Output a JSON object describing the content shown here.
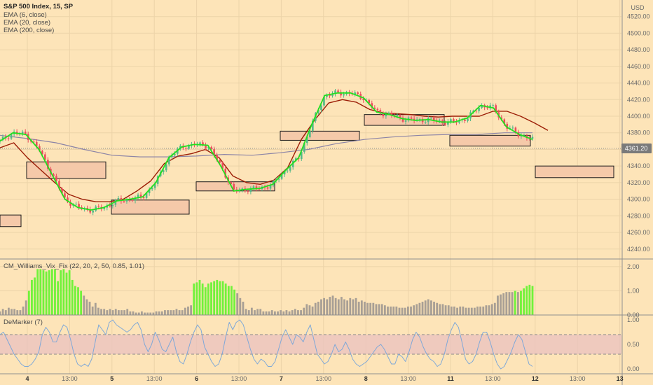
{
  "header": {
    "title": "S&P 500 Index, 15, SP",
    "indicators": [
      "EMA (6, close)",
      "EMA (20, close)",
      "EMA (200, close)"
    ],
    "currency": "USD"
  },
  "colors": {
    "background": "#fde4b8",
    "grid": "#ecd3a8",
    "candle_up": "#53b987",
    "candle_down": "#eb4d5c",
    "ema6": "#22e01e",
    "ema20": "#9c1d06",
    "ema200": "#8c84a6",
    "box_fill": "#f5c9a9",
    "box_stroke": "#1a1a1a",
    "last_price_bg": "#7a7a7a",
    "vix_green": "#71f23a",
    "vix_gray": "#a89f95",
    "demarker_line": "#7fa8d8",
    "demarker_band": "#e9c2c0"
  },
  "chart_data": [
    {
      "type": "candlestick",
      "title": "S&P 500 Index, 15, SP",
      "x_ticks": [
        "4",
        "13:00",
        "5",
        "13:00",
        "6",
        "13:00",
        "7",
        "13:00",
        "8",
        "13:00",
        "11",
        "13:00",
        "12",
        "13:00",
        "13"
      ],
      "y_ticks": [
        4240,
        4260,
        4280,
        4300,
        4320,
        4340,
        4360,
        4380,
        4400,
        4420,
        4440,
        4460,
        4480,
        4500,
        4520
      ],
      "ylim": [
        4228,
        4540
      ],
      "last_price": "4361.20",
      "ema6": [
        4370,
        4380,
        4378,
        4360,
        4330,
        4300,
        4290,
        4287,
        4290,
        4298,
        4300,
        4303,
        4320,
        4350,
        4363,
        4366,
        4365,
        4340,
        4310,
        4312,
        4313,
        4318,
        4335,
        4350,
        4390,
        4425,
        4428,
        4428,
        4422,
        4405,
        4402,
        4397,
        4395,
        4396,
        4393,
        4393,
        4398,
        4413,
        4410,
        4387,
        4378,
        4372
      ],
      "ema20": [
        4362,
        4368,
        4350,
        4335,
        4320,
        4306,
        4300,
        4297,
        4297,
        4300,
        4310,
        4322,
        4343,
        4352,
        4355,
        4360,
        4350,
        4328,
        4320,
        4318,
        4323,
        4338,
        4372,
        4396,
        4416,
        4420,
        4417,
        4408,
        4404,
        4403,
        4402,
        4400,
        4399,
        4400,
        4400,
        4400,
        4406,
        4406,
        4400,
        4392,
        4383
      ],
      "ema200": [
        4377,
        4373,
        4368,
        4360,
        4353,
        4351,
        4351,
        4352,
        4354,
        4353,
        4356,
        4360,
        4367,
        4372,
        4375,
        4377,
        4378,
        4378,
        4380,
        4380
      ],
      "boxes": [
        {
          "x0": 0,
          "x1": 30,
          "lo": 4267,
          "hi": 4281
        },
        {
          "x0": 38,
          "x1": 151,
          "lo": 4325,
          "hi": 4345
        },
        {
          "x0": 159,
          "x1": 270,
          "lo": 4282,
          "hi": 4299
        },
        {
          "x0": 280,
          "x1": 392,
          "lo": 4310,
          "hi": 4321
        },
        {
          "x0": 400,
          "x1": 513,
          "lo": 4371,
          "hi": 4382
        },
        {
          "x0": 520,
          "x1": 634,
          "lo": 4389,
          "hi": 4402
        },
        {
          "x0": 642,
          "x1": 757,
          "lo": 4364,
          "hi": 4377
        },
        {
          "x0": 764,
          "x1": 876,
          "lo": 4326,
          "hi": 4340
        }
      ]
    },
    {
      "type": "bar",
      "title": "CM_Williams_Vix_Fix (22, 20, 2, 50, 0.85, 1.01)",
      "y_ticks": [
        "2.00",
        "1.00",
        "0.00"
      ],
      "ylim": [
        0,
        2.2
      ],
      "values": [
        0.15,
        0.25,
        0.2,
        0.3,
        0.25,
        0.25,
        0.2,
        0.2,
        0.35,
        0.6,
        1.0,
        1.45,
        1.55,
        1.9,
        1.9,
        1.85,
        1.8,
        1.85,
        1.9,
        1.9,
        1.4,
        1.85,
        1.9,
        1.75,
        1.85,
        1.45,
        1.2,
        1.15,
        1.0,
        0.8,
        0.65,
        0.55,
        0.35,
        0.5,
        0.3,
        0.25,
        0.25,
        0.2,
        0.25,
        0.2,
        0.25,
        0.2,
        0.2,
        0.2,
        0.25,
        0.15,
        0.15,
        0.1,
        0.1,
        0.15,
        0.1,
        0.1,
        0.1,
        0.1,
        0.15,
        0.15,
        0.15,
        0.2,
        0.2,
        0.2,
        0.2,
        0.25,
        0.2,
        0.2,
        0.3,
        0.35,
        0.4,
        1.3,
        1.35,
        1.45,
        1.3,
        1.15,
        1.3,
        1.35,
        1.4,
        1.45,
        1.4,
        1.4,
        1.3,
        1.2,
        1.2,
        1.05,
        0.9,
        0.7,
        0.55,
        0.25,
        0.2,
        0.3,
        0.2,
        0.25,
        0.25,
        0.15,
        0.15,
        0.15,
        0.2,
        0.15,
        0.15,
        0.2,
        0.15,
        0.2,
        0.15,
        0.2,
        0.25,
        0.2,
        0.2,
        0.3,
        0.45,
        0.4,
        0.35,
        0.5,
        0.55,
        0.65,
        0.7,
        0.65,
        0.75,
        0.8,
        0.7,
        0.65,
        0.75,
        0.65,
        0.6,
        0.7,
        0.65,
        0.7,
        0.55,
        0.6,
        0.55,
        0.5,
        0.5,
        0.5,
        0.45,
        0.45,
        0.45,
        0.4,
        0.35,
        0.35,
        0.35,
        0.35,
        0.3,
        0.3,
        0.3,
        0.35,
        0.35,
        0.4,
        0.45,
        0.5,
        0.55,
        0.6,
        0.65,
        0.6,
        0.55,
        0.5,
        0.45,
        0.45,
        0.4,
        0.4,
        0.35,
        0.35,
        0.3,
        0.35,
        0.35,
        0.3,
        0.3,
        0.3,
        0.3,
        0.35,
        0.35,
        0.35,
        0.4,
        0.4,
        0.45,
        0.5,
        0.8,
        0.85,
        0.9,
        0.95,
        0.95,
        0.95,
        1.0,
        0.95,
        1.0,
        1.1,
        1.2,
        1.25,
        1.2
      ]
    },
    {
      "type": "line",
      "title": "DeMarker (7)",
      "y_ticks": [
        "1.00",
        "0.50",
        "0.00"
      ],
      "ylim": [
        -0.1,
        1.1
      ],
      "band": [
        0.3,
        0.7
      ],
      "values": [
        0.7,
        0.75,
        0.6,
        0.45,
        0.3,
        0.2,
        0.1,
        0.05,
        0.05,
        0.1,
        0.2,
        0.35,
        0.7,
        0.85,
        0.75,
        0.55,
        0.55,
        0.75,
        0.9,
        0.85,
        0.6,
        0.3,
        0.1,
        0.05,
        0.1,
        0.05,
        0.2,
        0.55,
        0.9,
        0.8,
        0.7,
        0.95,
        1.0,
        0.9,
        0.85,
        0.8,
        0.75,
        0.8,
        0.9,
        0.95,
        0.8,
        0.5,
        0.35,
        0.5,
        0.75,
        0.6,
        0.4,
        0.35,
        0.5,
        0.65,
        0.35,
        0.15,
        0.1,
        0.3,
        0.55,
        0.75,
        0.9,
        0.8,
        0.45,
        0.3,
        0.15,
        0.05,
        0.1,
        0.3,
        0.65,
        0.95,
        0.8,
        0.95,
        1.0,
        0.9,
        0.65,
        0.4,
        0.2,
        0.1,
        0.2,
        0.15,
        0.05,
        0.05,
        0.15,
        0.4,
        0.65,
        0.8,
        0.65,
        0.5,
        0.7,
        0.65,
        0.55,
        0.75,
        0.9,
        0.6,
        0.3,
        0.2,
        0.1,
        0.15,
        0.3,
        0.5,
        0.35,
        0.4,
        0.55,
        0.4,
        0.2,
        0.1,
        0.05,
        0.1,
        0.15,
        0.25,
        0.35,
        0.45,
        0.5,
        0.4,
        0.25,
        0.1,
        0.1,
        0.3,
        0.25,
        0.15,
        0.35,
        0.6,
        0.75,
        0.65,
        0.45,
        0.3,
        0.2,
        0.15,
        0.05,
        0.1,
        0.3,
        0.6,
        0.8,
        0.95,
        0.85,
        0.55,
        0.2,
        0.1,
        0.15,
        0.3,
        0.55,
        0.75,
        0.75,
        0.55,
        0.3,
        0.1,
        0.0,
        0.05,
        0.2,
        0.35,
        0.55,
        0.7,
        0.6,
        0.35,
        0.1,
        0.05
      ]
    }
  ]
}
